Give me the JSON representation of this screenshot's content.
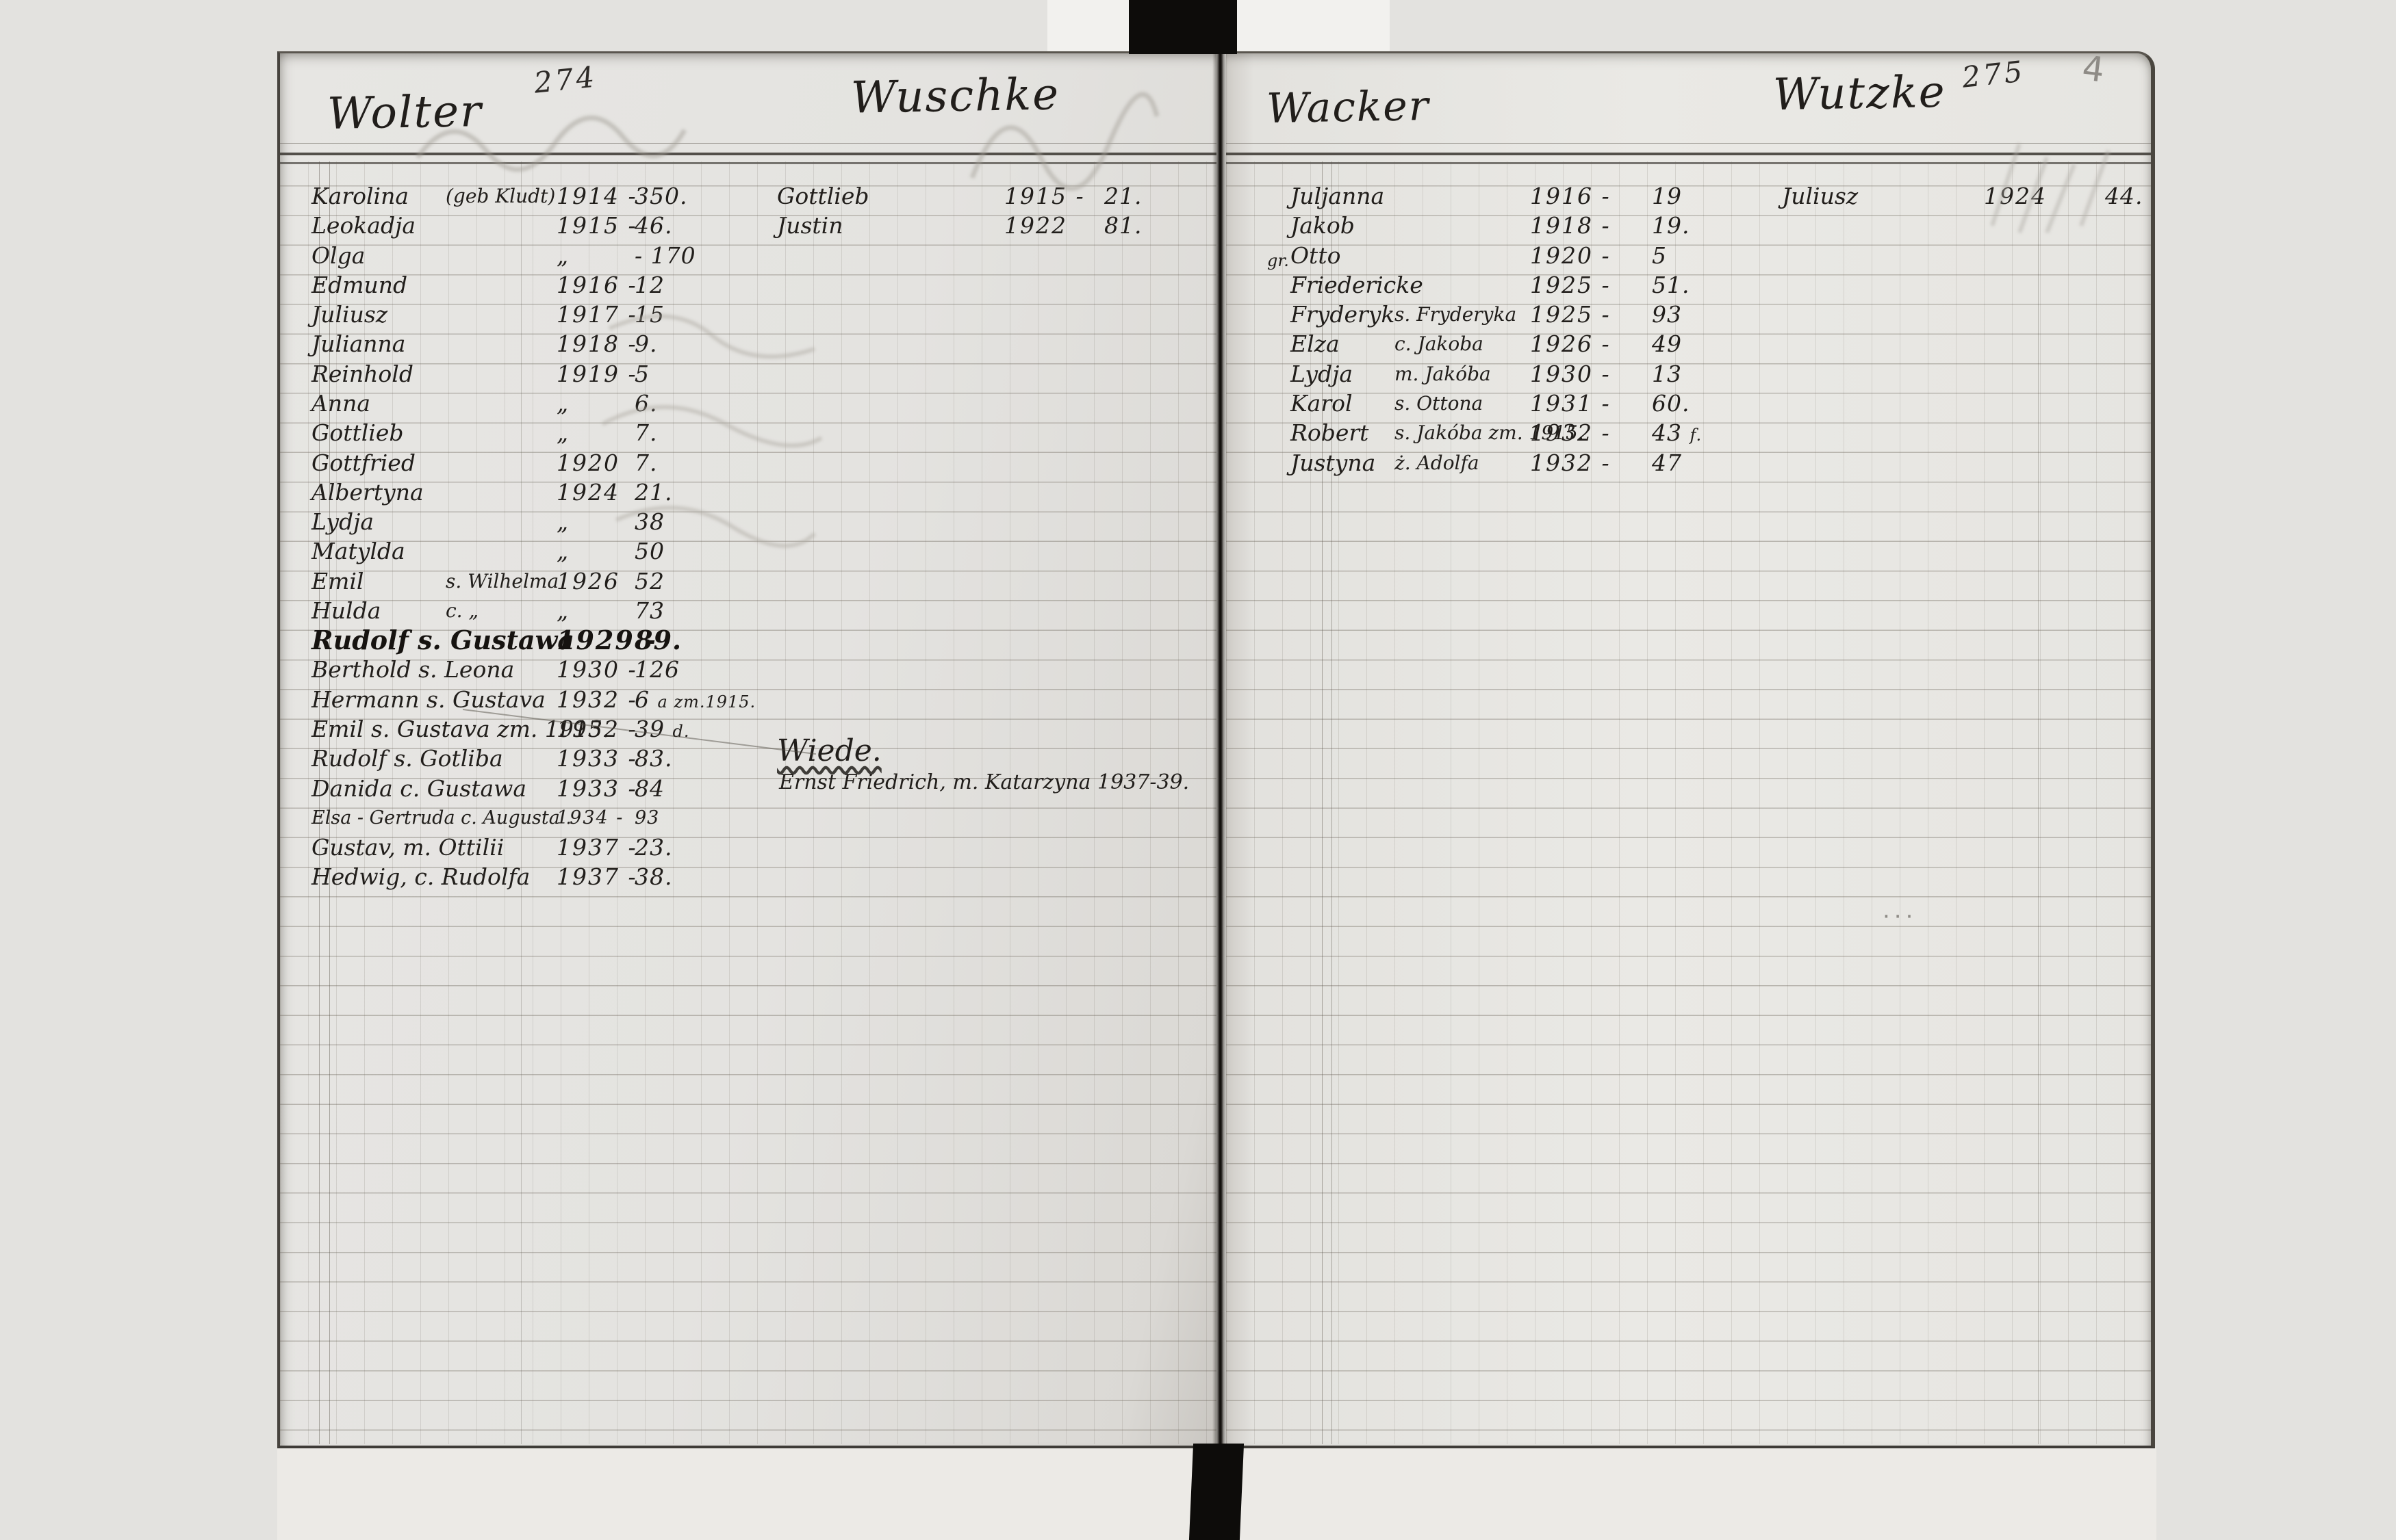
{
  "colors": {
    "ink": "#211e1b",
    "pencil": "#8e8b86",
    "paper": "#e5e4e1",
    "spine": "#0d0c0a"
  },
  "left_page": {
    "page_number_ink": "274",
    "columns": [
      {
        "surname": "Wolter",
        "entries": [
          {
            "name": "Karolina",
            "note": "(geb Kludt)",
            "year": "1914 -",
            "num": "350."
          },
          {
            "name": "Leokadja",
            "year": "1915 -",
            "num": "46."
          },
          {
            "name": "Olga",
            "year": "„",
            "num": "- 170"
          },
          {
            "name": "Edmund",
            "year": "1916 -",
            "num": "12"
          },
          {
            "name": "Juliusz",
            "year": "1917 -",
            "num": "15"
          },
          {
            "name": "Julianna",
            "year": "1918 -",
            "num": "9."
          },
          {
            "name": "Reinhold",
            "year": "1919 -",
            "num": "5"
          },
          {
            "name": "Anna",
            "year": "„",
            "num": "6."
          },
          {
            "name": "Gottlieb",
            "year": "„",
            "num": "7."
          },
          {
            "name": "Gottfried",
            "year": "1920",
            "num": "7."
          },
          {
            "name": "Albertyna",
            "year": "1924",
            "num": "21."
          },
          {
            "name": "Lydja",
            "year": "„",
            "num": "38"
          },
          {
            "name": "Matylda",
            "year": "„",
            "num": "50"
          },
          {
            "name": "Emil",
            "note": "s. Wilhelma",
            "year": "1926",
            "num": "52"
          },
          {
            "name": "Hulda",
            "note": "c.  „",
            "year": "„",
            "num": "73"
          },
          {
            "name": "Rudolf s. Gustawa",
            "year": "1929 -",
            "num": "89.",
            "bold": true
          },
          {
            "name": "Berthold s. Leona",
            "year": "1930 -",
            "num": "126"
          },
          {
            "name": "Hermann s. Gustava",
            "year": "1932 -",
            "num": "6",
            "extra": "a zm.1915."
          },
          {
            "name": "Emil s. Gustava zm. 1915.",
            "year": "1932 -",
            "num": "39",
            "extra": "d."
          },
          {
            "name": "Rudolf s. Gotliba",
            "year": "1933 -",
            "num": "83."
          },
          {
            "name": "Danida c. Gustawa",
            "year": "1933 -",
            "num": "84"
          },
          {
            "name": "Elsa - Gertruda c. Augusta .",
            "year": "1934 -",
            "num": "93",
            "small": true
          },
          {
            "name": "Gustav, m. Ottilii",
            "year": "1937 -",
            "num": "23."
          },
          {
            "name": "Hedwig, c. Rudolfa",
            "year": "1937 -",
            "num": "38."
          }
        ]
      },
      {
        "surname": "Wuschke",
        "entries": [
          {
            "name": "Gottlieb",
            "year": "1915 -",
            "num": "21."
          },
          {
            "name": "Justin",
            "year": "1922",
            "num": "81."
          }
        ]
      }
    ],
    "subsection": {
      "surname": "Wiede.",
      "entry_line": "Ernst Friedrich, m. Katarzyna 1937-39."
    }
  },
  "right_page": {
    "page_number_ink": "275",
    "corner_pencil": "4",
    "stray_pencil_dots": "···",
    "columns": [
      {
        "surname": "Wacker",
        "entries": [
          {
            "name": "Juljanna",
            "year": "1916 -",
            "num": "19"
          },
          {
            "name": "Jakob",
            "year": "1918 -",
            "num": "19."
          },
          {
            "name": "Otto",
            "year": "1920 -",
            "num": "5"
          },
          {
            "name": "Friedericke",
            "year": "1925 -",
            "num": "51.",
            "premark": "gr."
          },
          {
            "name": "Fryderyk",
            "note": "s. Fryderyka",
            "year": "1925 -",
            "num": "93"
          },
          {
            "name": "Elza",
            "note": "c. Jakoba",
            "year": "1926 -",
            "num": "49"
          },
          {
            "name": "Lydja",
            "note": "m. Jakóba",
            "year": "1930 -",
            "num": "13"
          },
          {
            "name": "Karol",
            "note": "s. Ottona",
            "year": "1931 -",
            "num": "60."
          },
          {
            "name": "Robert",
            "note": "s. Jakóba zm. 1915.",
            "year": "1932 -",
            "num": "43",
            "extra": "f."
          },
          {
            "name": "Justyna",
            "note": "ż. Adolfa",
            "year": "1932 -",
            "num": "47"
          }
        ]
      },
      {
        "surname": "Wutzke",
        "entries": [
          {
            "name": "Juliusz",
            "year": "1924",
            "num": "44."
          }
        ]
      }
    ]
  }
}
